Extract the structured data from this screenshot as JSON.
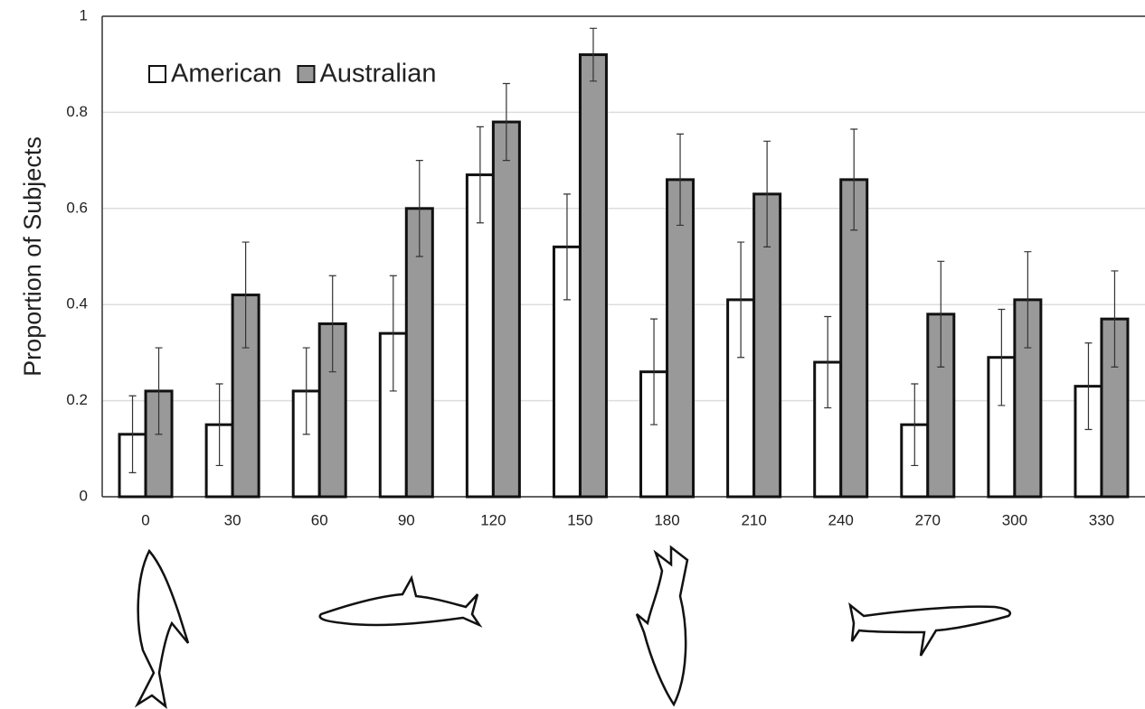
{
  "chart_data": {
    "type": "bar",
    "y_label": "Proportion of Subjects",
    "categories": [
      "0",
      "30",
      "60",
      "90",
      "120",
      "150",
      "180",
      "210",
      "240",
      "270",
      "300",
      "330"
    ],
    "series": [
      {
        "name": "American",
        "color": "#ffffff",
        "values": [
          0.13,
          0.15,
          0.22,
          0.34,
          0.67,
          0.52,
          0.26,
          0.41,
          0.28,
          0.15,
          0.29,
          0.23
        ],
        "errors": [
          0.08,
          0.085,
          0.09,
          0.12,
          0.1,
          0.11,
          0.11,
          0.12,
          0.095,
          0.085,
          0.1,
          0.09
        ]
      },
      {
        "name": "Australian",
        "color": "#999999",
        "values": [
          0.22,
          0.42,
          0.36,
          0.6,
          0.78,
          0.92,
          0.66,
          0.63,
          0.66,
          0.38,
          0.41,
          0.37
        ],
        "errors": [
          0.09,
          0.11,
          0.1,
          0.1,
          0.08,
          0.055,
          0.095,
          0.11,
          0.105,
          0.11,
          0.1,
          0.1
        ]
      }
    ],
    "ylim": [
      0,
      1
    ],
    "yticks": [
      0,
      0.2,
      0.4,
      0.6,
      0.8,
      1
    ],
    "grid": true,
    "legend": "top-left"
  }
}
